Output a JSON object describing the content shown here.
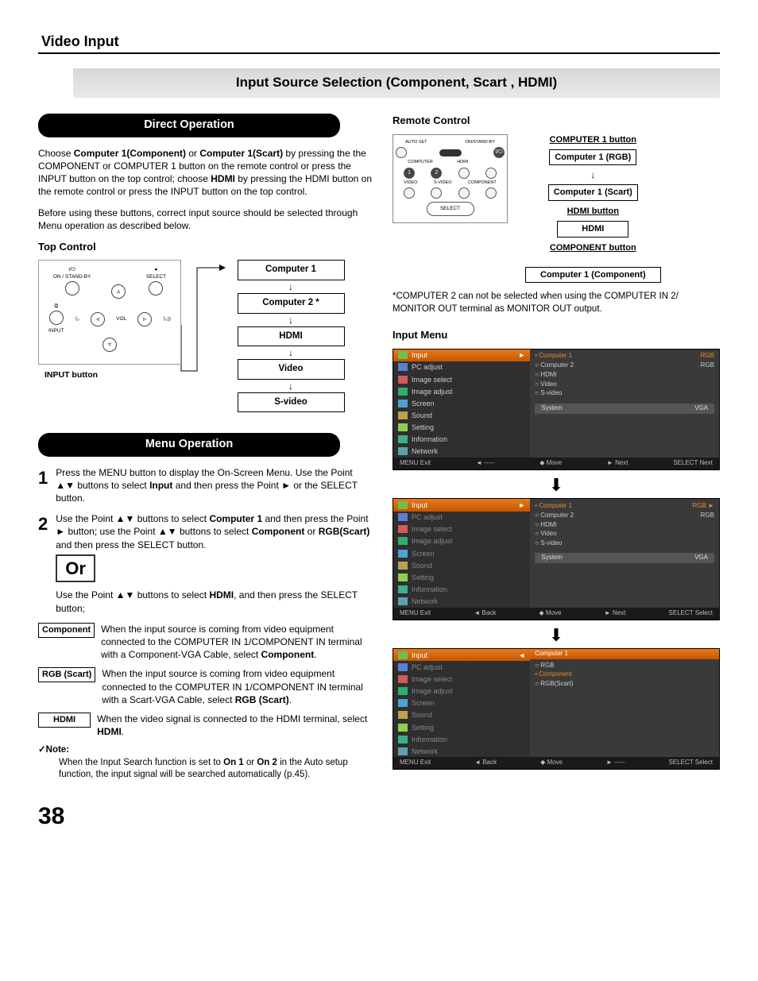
{
  "page": {
    "section": "Video Input",
    "number": "38"
  },
  "banner": "Input Source Selection (Component, Scart , HDMI)",
  "pills": {
    "direct": "Direct Operation",
    "menu": "Menu Operation"
  },
  "intro": {
    "p1a": "Choose ",
    "p1b": "Computer 1(Component)",
    "p1c": " or ",
    "p1d": "Computer 1(Scart)",
    "p1e": " by pressing the the COMPONENT or COMPUTER 1 button on the remote control or press the INPUT button on the top control; choose ",
    "p1f": "HDMI",
    "p1g": " by pressing the HDMI button on the remote control or press the INPUT button on the top control.",
    "p2": "Before using these buttons, correct input source should be selected through Menu operation as described below."
  },
  "topctrl": {
    "title": "Top Control",
    "onstandby": "ON / STAND-BY",
    "select": "SELECT",
    "input": "INPUT",
    "vol": "VOL",
    "inputbtn": "INPUT button",
    "flow": [
      "Computer 1",
      "Computer 2 *",
      "HDMI",
      "Video",
      "S-video"
    ]
  },
  "steps": {
    "s1a": "Press the MENU button to display the On-Screen Menu. Use the Point ▲▼ buttons to select ",
    "s1b": "Input",
    "s1c": " and then press the Point ► or the SELECT button.",
    "s2a": "Use the Point ▲▼ buttons to select ",
    "s2b": "Computer 1",
    "s2c": " and then press the Point ► button; use the Point ▲▼ buttons to select ",
    "s2d": "Component",
    "s2e": " or ",
    "s2f": "RGB(Scart)",
    "s2g": " and then press the SELECT button.",
    "or": "Or",
    "s3a": "Use the Point ▲▼ buttons to select ",
    "s3b": "HDMI",
    "s3c": ", and then press the SELECT button;"
  },
  "defs": {
    "component": {
      "label": "Component",
      "t1": "When the input source is coming from video equipment connected to the COMPUTER IN 1/COMPONENT IN terminal with a Component-VGA Cable, select ",
      "b": "Component",
      "t2": "."
    },
    "rgb": {
      "label": "RGB (Scart)",
      "t1": "When the input source is coming from video equipment connected to the COMPUTER IN 1/COMPONENT IN terminal with a Scart-VGA Cable, select ",
      "b": "RGB (Scart)",
      "t2": "."
    },
    "hdmi": {
      "label": "HDMI",
      "t1": "When the video signal is connected to the HDMI terminal, select ",
      "b": "HDMI",
      "t2": "."
    }
  },
  "note": {
    "title": "✓Note:",
    "t1": "When the Input Search function is set to ",
    "b1": "On 1",
    "t2": " or ",
    "b2": "On 2",
    "t3": " in the Auto setup function, the input signal will be searched automatically (p.45)."
  },
  "remote": {
    "title": "Remote Control",
    "autoset": "AUTO SET",
    "onstandby": "ON/STAND-BY",
    "computer": "COMPUTER",
    "hdmi_l": "HDMI",
    "video": "VIDEO",
    "svideo": "S-VIDEO",
    "component_l": "COMPONENT",
    "select": "SELECT",
    "labels": {
      "comp1btn": "COMPUTER 1 button",
      "comp1rgb": "Computer 1 (RGB)",
      "comp1scart": "Computer 1 (Scart)",
      "hdmibtn": "HDMI button",
      "hdmi": "HDMI",
      "compbtn": "COMPONENT button",
      "comp1comp": "Computer 1 (Component)"
    },
    "footnote": "*COMPUTER 2 can not be selected when using the COMPUTER IN 2/ MONITOR OUT terminal as MONITOR OUT output."
  },
  "inputmenu": {
    "title": "Input Menu",
    "left_items": [
      "Input",
      "PC adjust",
      "Image select",
      "Image adjust",
      "Screen",
      "Sound",
      "Setting",
      "Information",
      "Network"
    ],
    "icon_colors": [
      "#6fbf4f",
      "#5a7fd4",
      "#d15a5a",
      "#2fae6f",
      "#4fa0d4",
      "#bfa04f",
      "#8fd04f",
      "#3fae8f",
      "#5fa0af"
    ],
    "m1_right": [
      [
        "• Computer 1",
        "RGB"
      ],
      [
        "○ Computer 2",
        "RGB"
      ],
      [
        "○ HDMI",
        ""
      ],
      [
        "○ Video",
        ""
      ],
      [
        "○ S-video",
        ""
      ]
    ],
    "m2_right": [
      [
        "• Computer 1",
        "RGB  ►"
      ],
      [
        "○ Computer 2",
        "RGB"
      ],
      [
        "○ HDMI",
        ""
      ],
      [
        "○ Video",
        ""
      ],
      [
        "○ S-video",
        ""
      ]
    ],
    "m3_right_header": "Computer 1",
    "m3_right": [
      "○ RGB",
      "• Component",
      "○ RGB(Scart)"
    ],
    "sys": [
      "System",
      "VGA"
    ],
    "foot1": [
      "MENU Exit",
      "◄ -----",
      "◆ Move",
      "► Next",
      "SELECT Next"
    ],
    "foot2": [
      "MENU Exit",
      "◄ Back",
      "◆ Move",
      "► Next",
      "SELECT Select"
    ],
    "foot3": [
      "MENU Exit",
      "◄ Back",
      "◆ Move",
      "► -----",
      "SELECT Select"
    ]
  }
}
